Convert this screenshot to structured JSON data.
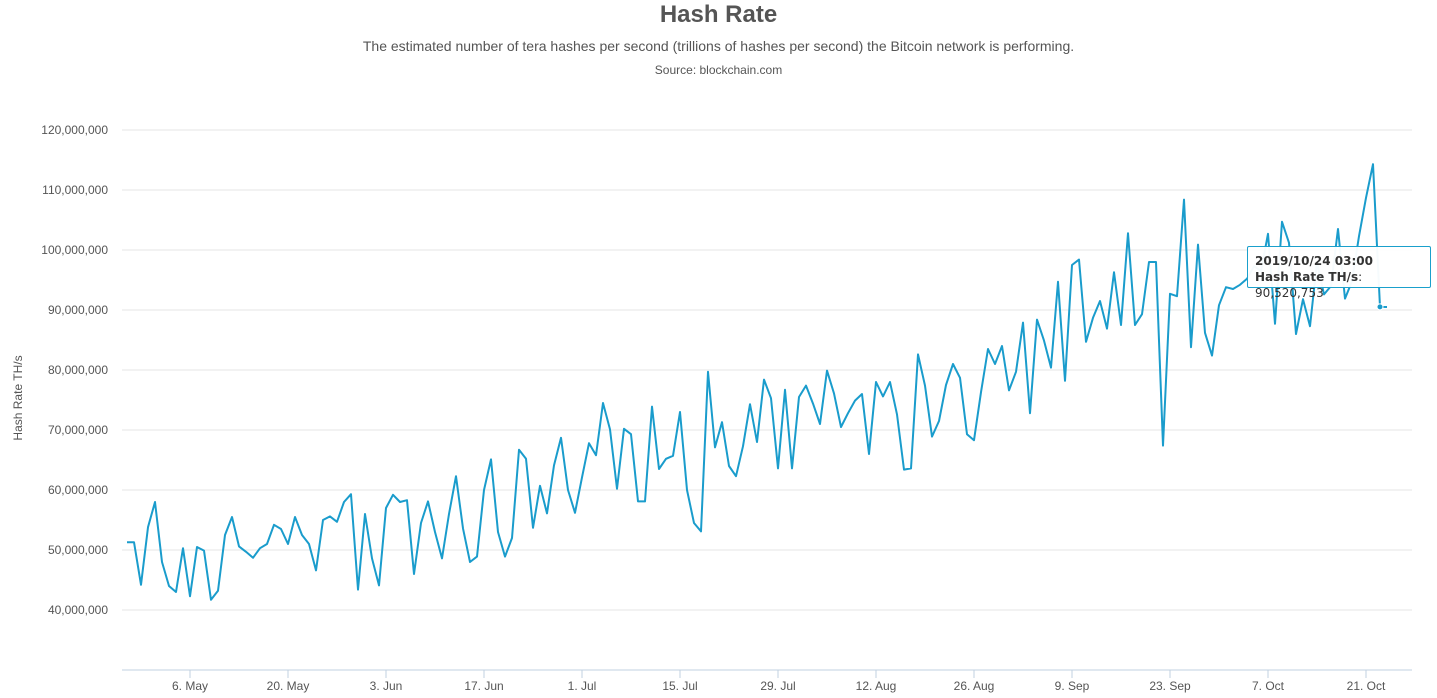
{
  "header": {
    "title": "Hash Rate",
    "subtitle": "The estimated number of tera hashes per second (trillions of hashes per second) the Bitcoin network is performing.",
    "source": "Source: blockchain.com"
  },
  "tooltip": {
    "date": "2019/10/24 03:00",
    "label": "Hash Rate TH/s",
    "separator": ":",
    "value": "90,520,753"
  },
  "colors": {
    "line": "#1a9ccc",
    "grid": "#e6e6e6",
    "axis": "#c0d0e0"
  },
  "chart_data": {
    "type": "line",
    "title": "Hash Rate",
    "xlabel": "",
    "ylabel": "Hash Rate TH/s",
    "ylim": [
      30000000,
      120000000
    ],
    "grid": true,
    "yticks": [
      {
        "value": 40000000,
        "label": "40,000,000"
      },
      {
        "value": 50000000,
        "label": "50,000,000"
      },
      {
        "value": 60000000,
        "label": "60,000,000"
      },
      {
        "value": 70000000,
        "label": "70,000,000"
      },
      {
        "value": 80000000,
        "label": "80,000,000"
      },
      {
        "value": 90000000,
        "label": "90,000,000"
      },
      {
        "value": 100000000,
        "label": "100,000,000"
      },
      {
        "value": 110000000,
        "label": "110,000,000"
      },
      {
        "value": 120000000,
        "label": "120,000,000"
      }
    ],
    "xticks": [
      {
        "date": "2019-05-06",
        "label": "6. May"
      },
      {
        "date": "2019-05-20",
        "label": "20. May"
      },
      {
        "date": "2019-06-03",
        "label": "3. Jun"
      },
      {
        "date": "2019-06-17",
        "label": "17. Jun"
      },
      {
        "date": "2019-07-01",
        "label": "1. Jul"
      },
      {
        "date": "2019-07-15",
        "label": "15. Jul"
      },
      {
        "date": "2019-07-29",
        "label": "29. Jul"
      },
      {
        "date": "2019-08-12",
        "label": "12. Aug"
      },
      {
        "date": "2019-08-26",
        "label": "26. Aug"
      },
      {
        "date": "2019-09-09",
        "label": "9. Sep"
      },
      {
        "date": "2019-09-23",
        "label": "23. Sep"
      },
      {
        "date": "2019-10-07",
        "label": "7. Oct"
      },
      {
        "date": "2019-10-21",
        "label": "21. Oct"
      }
    ],
    "series": [
      {
        "x": [
          "2019-04-27",
          "2019-04-28",
          "2019-04-29",
          "2019-04-30",
          "2019-05-01",
          "2019-05-02",
          "2019-05-03",
          "2019-05-04",
          "2019-05-05",
          "2019-05-06",
          "2019-05-07",
          "2019-05-08",
          "2019-05-09",
          "2019-05-10",
          "2019-05-11",
          "2019-05-12",
          "2019-05-13",
          "2019-05-14",
          "2019-05-15",
          "2019-05-16",
          "2019-05-17",
          "2019-05-18",
          "2019-05-19",
          "2019-05-20",
          "2019-05-21",
          "2019-05-22",
          "2019-05-23",
          "2019-05-24",
          "2019-05-25",
          "2019-05-26",
          "2019-05-27",
          "2019-05-28",
          "2019-05-29",
          "2019-05-30",
          "2019-05-31",
          "2019-06-01",
          "2019-06-02",
          "2019-06-03",
          "2019-06-04",
          "2019-06-05",
          "2019-06-06",
          "2019-06-07",
          "2019-06-08",
          "2019-06-09",
          "2019-06-10",
          "2019-06-11",
          "2019-06-12",
          "2019-06-13",
          "2019-06-14",
          "2019-06-15",
          "2019-06-16",
          "2019-06-17",
          "2019-06-18",
          "2019-06-19",
          "2019-06-20",
          "2019-06-21",
          "2019-06-22",
          "2019-06-23",
          "2019-06-24",
          "2019-06-25",
          "2019-06-26",
          "2019-06-27",
          "2019-06-28",
          "2019-06-29",
          "2019-06-30",
          "2019-07-01",
          "2019-07-02",
          "2019-07-03",
          "2019-07-04",
          "2019-07-05",
          "2019-07-06",
          "2019-07-07",
          "2019-07-08",
          "2019-07-09",
          "2019-07-10",
          "2019-07-11",
          "2019-07-12",
          "2019-07-13",
          "2019-07-14",
          "2019-07-15",
          "2019-07-16",
          "2019-07-17",
          "2019-07-18",
          "2019-07-19",
          "2019-07-20",
          "2019-07-21",
          "2019-07-22",
          "2019-07-23",
          "2019-07-24",
          "2019-07-25",
          "2019-07-26",
          "2019-07-27",
          "2019-07-28",
          "2019-07-29",
          "2019-07-30",
          "2019-07-31",
          "2019-08-01",
          "2019-08-02",
          "2019-08-03",
          "2019-08-04",
          "2019-08-05",
          "2019-08-06",
          "2019-08-07",
          "2019-08-08",
          "2019-08-09",
          "2019-08-10",
          "2019-08-11",
          "2019-08-12",
          "2019-08-13",
          "2019-08-14",
          "2019-08-15",
          "2019-08-16",
          "2019-08-17",
          "2019-08-18",
          "2019-08-19",
          "2019-08-20",
          "2019-08-21",
          "2019-08-22",
          "2019-08-23",
          "2019-08-24",
          "2019-08-25",
          "2019-08-26",
          "2019-08-27",
          "2019-08-28",
          "2019-08-29",
          "2019-08-30",
          "2019-08-31",
          "2019-09-01",
          "2019-09-02",
          "2019-09-03",
          "2019-09-04",
          "2019-09-05",
          "2019-09-06",
          "2019-09-07",
          "2019-09-08",
          "2019-09-09",
          "2019-09-10",
          "2019-09-11",
          "2019-09-12",
          "2019-09-13",
          "2019-09-14",
          "2019-09-15",
          "2019-09-16",
          "2019-09-17",
          "2019-09-18",
          "2019-09-19",
          "2019-09-20",
          "2019-09-21",
          "2019-09-22",
          "2019-09-23",
          "2019-09-24",
          "2019-09-25",
          "2019-09-26",
          "2019-09-27",
          "2019-09-28",
          "2019-09-29",
          "2019-09-30",
          "2019-10-01",
          "2019-10-02",
          "2019-10-03",
          "2019-10-04",
          "2019-10-05",
          "2019-10-06",
          "2019-10-07",
          "2019-10-08",
          "2019-10-09",
          "2019-10-10",
          "2019-10-11",
          "2019-10-12",
          "2019-10-13",
          "2019-10-14",
          "2019-10-15",
          "2019-10-16",
          "2019-10-17",
          "2019-10-18",
          "2019-10-19",
          "2019-10-20",
          "2019-10-21",
          "2019-10-22",
          "2019-10-23",
          "2019-10-24"
        ],
        "values": [
          51300000,
          51300000,
          44200000,
          53800000,
          58000000,
          48000000,
          44000000,
          43000000,
          50300000,
          42300000,
          50500000,
          49900000,
          41700000,
          43200000,
          52500000,
          55500000,
          50600000,
          49700000,
          48700000,
          50300000,
          51000000,
          54200000,
          53500000,
          51000000,
          55500000,
          52500000,
          51000000,
          46600000,
          55000000,
          55600000,
          54700000,
          58000000,
          59300000,
          43400000,
          56000000,
          48600000,
          44100000,
          57000000,
          59200000,
          58000000,
          58300000,
          46000000,
          54500000,
          58100000,
          53000000,
          48600000,
          56000000,
          62300000,
          53600000,
          48000000,
          48900000,
          60000000,
          65100000,
          53000000,
          48900000,
          52000000,
          66700000,
          65200000,
          53700000,
          60700000,
          56100000,
          64100000,
          68700000,
          60000000,
          56200000,
          62100000,
          67800000,
          65800000,
          74500000,
          70100000,
          60200000,
          70200000,
          69300000,
          58100000,
          58100000,
          73900000,
          63500000,
          65200000,
          65700000,
          73000000,
          60000000,
          54500000,
          53100000,
          79700000,
          67100000,
          71300000,
          64000000,
          62300000,
          67300000,
          74300000,
          68000000,
          78400000,
          75300000,
          63600000,
          76700000,
          63600000,
          75500000,
          77400000,
          74400000,
          71000000,
          79900000,
          76100000,
          70500000,
          72800000,
          74900000,
          76000000,
          66000000,
          78000000,
          75600000,
          78000000,
          72600000,
          63400000,
          63600000,
          82600000,
          77400000,
          68900000,
          71500000,
          77500000,
          81000000,
          78700000,
          69300000,
          68300000,
          76300000,
          83500000,
          81000000,
          84000000,
          76600000,
          79700000,
          87900000,
          72800000,
          88400000,
          84900000,
          80400000,
          94700000,
          78200000,
          97500000,
          98400000,
          84700000,
          88700000,
          91500000,
          86900000,
          96300000,
          87500000,
          102800000,
          87500000,
          89300000,
          98000000,
          98000000,
          67400000,
          92700000,
          92300000,
          108400000,
          83800000,
          100900000,
          86200000,
          82400000,
          90800000,
          93800000,
          93500000,
          94200000,
          95200000,
          97300000,
          96500000,
          102700000,
          87700000,
          104700000,
          101200000,
          86000000,
          91800000,
          87300000,
          98000000,
          92600000,
          94000000,
          103500000,
          91900000,
          94800000,
          102300000,
          108700000,
          114300000,
          90520753,
          90500000
        ]
      }
    ]
  }
}
